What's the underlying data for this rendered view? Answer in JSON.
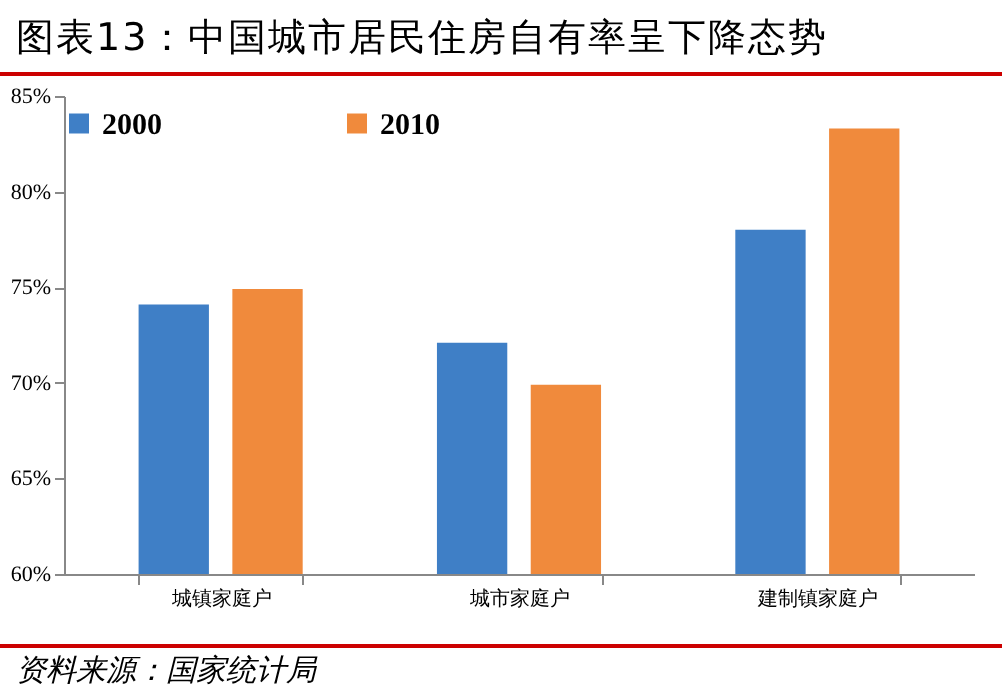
{
  "chart_data": {
    "type": "bar",
    "title": "图表13：中国城市居民住房自有率呈下降态势",
    "categories": [
      "城镇家庭户",
      "城市家庭户",
      "建制镇家庭户"
    ],
    "series": [
      {
        "name": "2000",
        "color": "#3f7fc6",
        "values": [
          74.1,
          72.1,
          78.0
        ]
      },
      {
        "name": "2010",
        "color": "#f08a3c",
        "values": [
          74.9,
          69.9,
          83.3
        ]
      }
    ],
    "ylim": [
      60,
      85
    ],
    "yticks": [
      {
        "value": 60,
        "label": "60%"
      },
      {
        "value": 65,
        "label": "65%"
      },
      {
        "value": 70,
        "label": "70%"
      },
      {
        "value": 75,
        "label": "75%"
      },
      {
        "value": 80,
        "label": "80%"
      },
      {
        "value": 85,
        "label": "85%"
      }
    ],
    "grid": false,
    "legend": "top",
    "annotations": [
      "资料来源：国家统计局"
    ]
  }
}
